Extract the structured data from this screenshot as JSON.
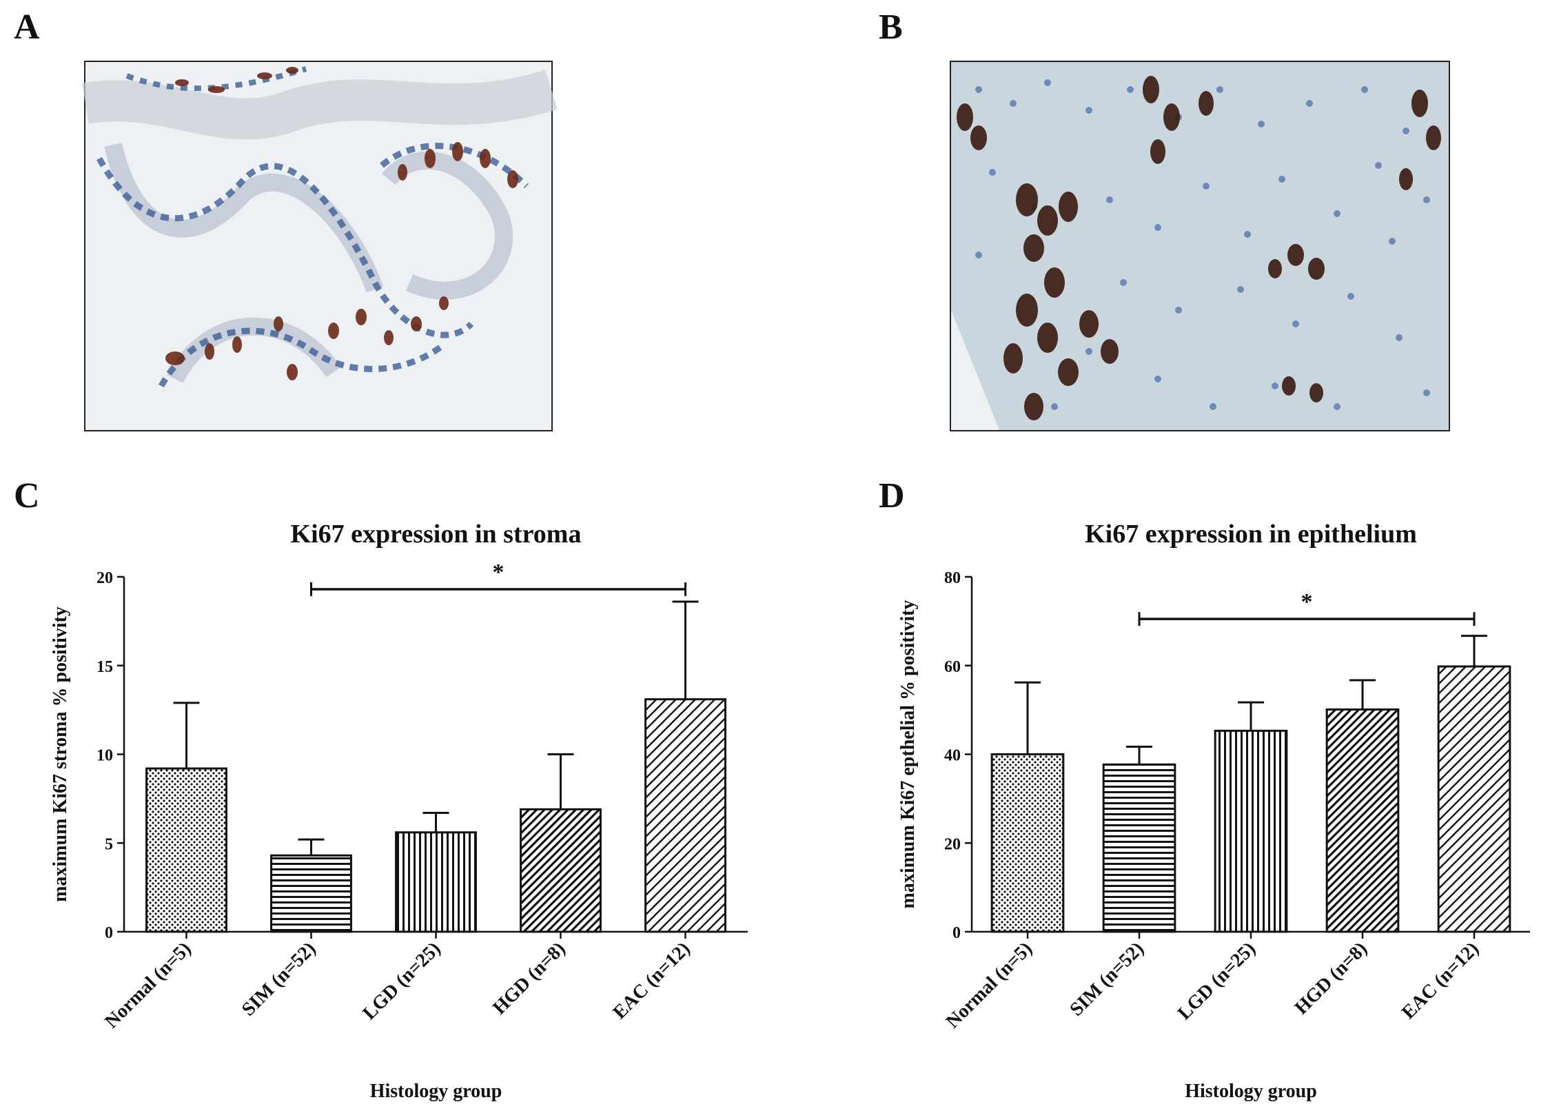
{
  "panels": {
    "a": {
      "letter": "A"
    },
    "b": {
      "letter": "B"
    },
    "c": {
      "letter": "C"
    },
    "d": {
      "letter": "D"
    }
  },
  "images": {
    "a": {
      "subject": "Ki67 immunohistochemistry micrograph, lower staining",
      "palette": {
        "background": "#eef1f3",
        "nuclei": "#3d5f95",
        "positive": "#6b2a18"
      }
    },
    "b": {
      "subject": "Ki67 immunohistochemistry micrograph, higher staining",
      "palette": {
        "background": "#c9d6de",
        "nuclei": "#3d64a3",
        "positive": "#3b1a10"
      }
    }
  },
  "chart_data": [
    {
      "id": "stroma",
      "type": "bar",
      "title": "Ki67 expression in stroma",
      "xlabel": "Histology group",
      "ylabel": "maximum Ki67 stroma % positivity",
      "categories": [
        "Normal (n=5)",
        "SIM (n=52)",
        "LGD (n=25)",
        "HGD (n=8)",
        "EAC (n=12)"
      ],
      "values": [
        9.2,
        4.3,
        5.6,
        6.9,
        13.1
      ],
      "errors": [
        3.7,
        0.9,
        1.1,
        3.1,
        5.5
      ],
      "patterns": [
        "dots",
        "horizontal",
        "vertical",
        "diagonal-dense",
        "diagonal-sparse"
      ],
      "ylim": [
        0,
        20
      ],
      "yticks": [
        "0",
        "5",
        "10",
        "15",
        "20"
      ],
      "significance": {
        "from": "SIM (n=52)",
        "to": "EAC (n=12)",
        "label": "*",
        "level": 19.3
      }
    },
    {
      "id": "epithelium",
      "type": "bar",
      "title": "Ki67 expression in epithelium",
      "xlabel": "Histology group",
      "ylabel": "maximum Ki67 epthelial % positivity",
      "categories": [
        "Normal (n=5)",
        "SIM (n=52)",
        "LGD (n=25)",
        "HGD (n=8)",
        "EAC (n=12)"
      ],
      "values": [
        40.0,
        37.7,
        45.3,
        50.1,
        59.8
      ],
      "errors": [
        16.2,
        4.0,
        6.4,
        6.6,
        6.9
      ],
      "patterns": [
        "dots",
        "horizontal",
        "vertical",
        "diagonal-dense",
        "diagonal-sparse"
      ],
      "ylim": [
        0,
        80
      ],
      "yticks": [
        "0",
        "20",
        "40",
        "60",
        "80"
      ],
      "significance": {
        "from": "SIM (n=52)",
        "to": "EAC (n=12)",
        "label": "*",
        "level": 70.5
      }
    }
  ]
}
